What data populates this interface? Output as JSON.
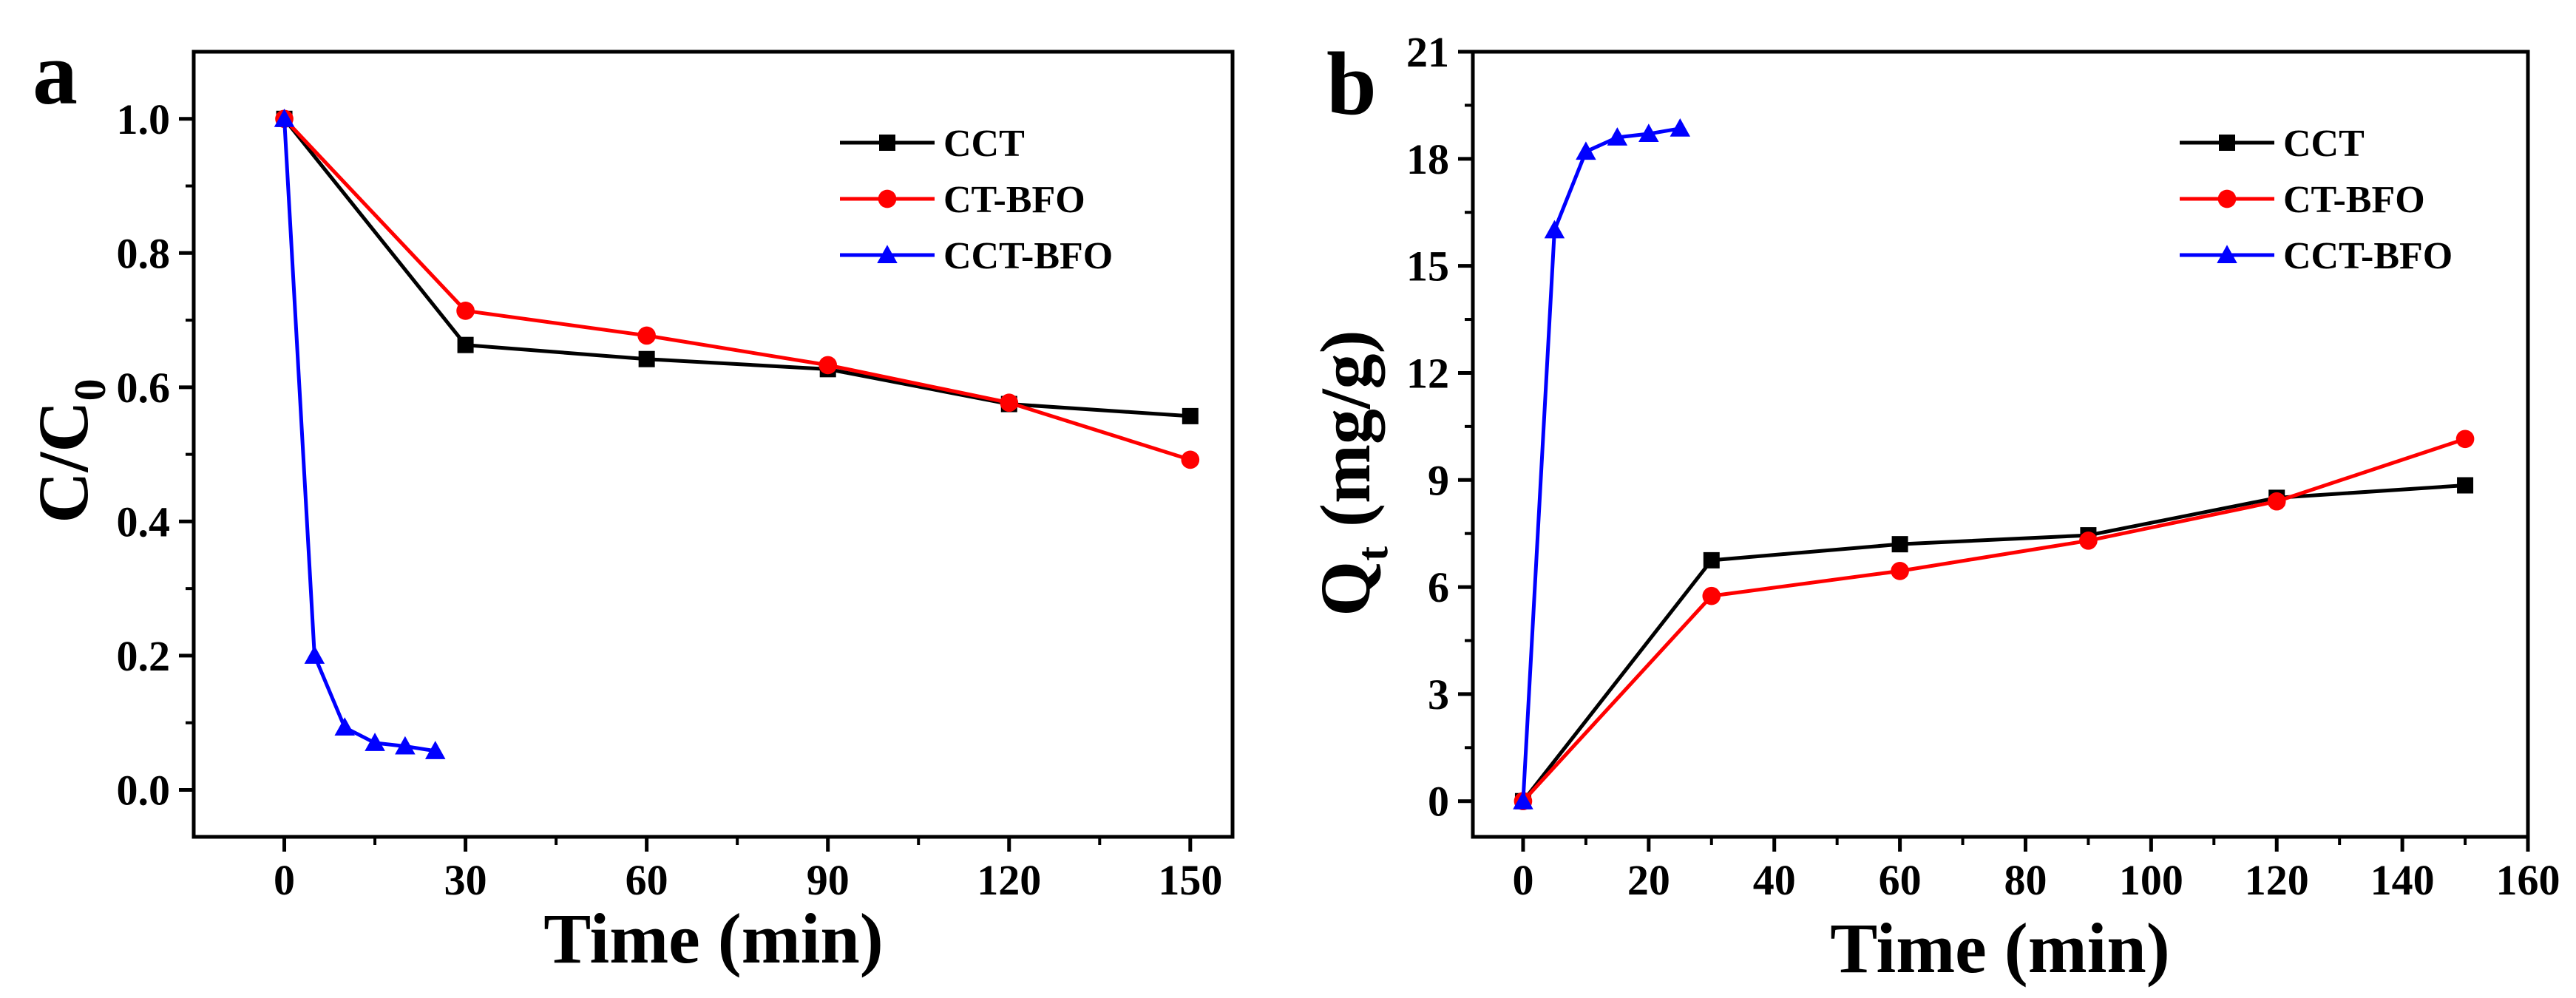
{
  "chart_data": [
    {
      "type": "line",
      "panel_label": "a",
      "xlabel": "Time (min)",
      "ylabel_main": "C/C",
      "ylabel_sub": "0",
      "xlim": [
        -15,
        157
      ],
      "ylim": [
        -0.07,
        1.1
      ],
      "xticks": [
        0,
        30,
        60,
        90,
        120,
        150
      ],
      "xtick_labels": [
        "0",
        "30",
        "60",
        "90",
        "120",
        "150"
      ],
      "yticks": [
        0.0,
        0.2,
        0.4,
        0.6,
        0.8,
        1.0
      ],
      "ytick_labels": [
        "0.0",
        "0.2",
        "0.4",
        "0.6",
        "0.8",
        "1.0"
      ],
      "legend_position": "top-right",
      "series": [
        {
          "name": "CCT",
          "color": "#000000",
          "marker": "square",
          "x": [
            0,
            30,
            60,
            90,
            120,
            150
          ],
          "y": [
            1.0,
            0.663,
            0.642,
            0.627,
            0.575,
            0.557
          ]
        },
        {
          "name": "CT-BFO",
          "color": "#ff0000",
          "marker": "circle",
          "x": [
            0,
            30,
            60,
            90,
            120,
            150
          ],
          "y": [
            1.0,
            0.714,
            0.677,
            0.633,
            0.577,
            0.492
          ]
        },
        {
          "name": "CCT-BFO",
          "color": "#0000ff",
          "marker": "triangle",
          "x": [
            0,
            5,
            10,
            15,
            20,
            25
          ],
          "y": [
            1.0,
            0.2,
            0.093,
            0.07,
            0.065,
            0.058
          ]
        }
      ]
    },
    {
      "type": "line",
      "panel_label": "b",
      "xlabel": "Time (min)",
      "ylabel_main": "Q",
      "ylabel_sub": "t",
      "ylabel_rest": "(mg/g)",
      "xlim": [
        -8,
        160
      ],
      "ylim": [
        -1,
        21
      ],
      "xticks": [
        0,
        20,
        40,
        60,
        80,
        100,
        120,
        140,
        160
      ],
      "xtick_labels": [
        "0",
        "20",
        "40",
        "60",
        "80",
        "100",
        "120",
        "140",
        "160"
      ],
      "yticks": [
        0,
        3,
        6,
        9,
        12,
        15,
        18,
        21
      ],
      "ytick_labels": [
        "0",
        "3",
        "6",
        "9",
        "12",
        "15",
        "18",
        "21"
      ],
      "legend_position": "top-right",
      "series": [
        {
          "name": "CCT",
          "color": "#000000",
          "marker": "square",
          "x": [
            0,
            30,
            60,
            90,
            120,
            150
          ],
          "y": [
            0,
            6.75,
            7.2,
            7.45,
            8.5,
            8.85
          ]
        },
        {
          "name": "CT-BFO",
          "color": "#ff0000",
          "marker": "circle",
          "x": [
            0,
            30,
            60,
            90,
            120,
            150
          ],
          "y": [
            0,
            5.75,
            6.45,
            7.3,
            8.4,
            10.15
          ]
        },
        {
          "name": "CCT-BFO",
          "color": "#0000ff",
          "marker": "triangle",
          "x": [
            0,
            5,
            10,
            15,
            20,
            25
          ],
          "y": [
            0,
            16.0,
            18.2,
            18.6,
            18.7,
            18.85
          ]
        }
      ]
    }
  ]
}
